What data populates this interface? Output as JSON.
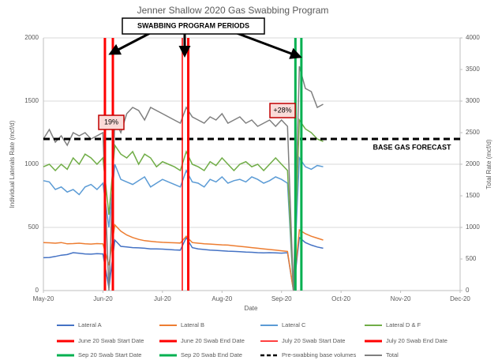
{
  "chart_data": {
    "type": "line",
    "title": "Jenner Shallow 2020 Gas Swabbing Program",
    "x_label": "Date",
    "y_label": "Individual Laterals Rate (mcf/d)",
    "y2_label": "Total Rate (mcf/d)",
    "x": [
      0,
      3,
      6,
      9,
      12,
      15,
      18,
      21,
      24,
      27,
      30,
      33,
      36,
      39,
      42,
      45,
      48,
      51,
      54,
      57,
      60,
      63,
      66,
      69,
      72,
      75,
      78,
      81,
      84,
      87,
      90,
      93,
      96,
      99,
      102,
      105,
      108,
      111,
      114,
      117,
      120,
      123,
      126,
      129,
      132,
      135,
      138,
      141
    ],
    "xlim": [
      0,
      210
    ],
    "xticks": [
      {
        "value": 0,
        "label": "May-20"
      },
      {
        "value": 30,
        "label": "Jun-20"
      },
      {
        "value": 60,
        "label": "Jul-20"
      },
      {
        "value": 90,
        "label": "Aug-20"
      },
      {
        "value": 120,
        "label": "Sep-20"
      },
      {
        "value": 150,
        "label": "Oct-20"
      },
      {
        "value": 180,
        "label": "Nov-20"
      },
      {
        "value": 210,
        "label": "Dec-20"
      }
    ],
    "ylim": [
      0,
      2000
    ],
    "yticks": [
      0,
      500,
      1000,
      1500,
      2000
    ],
    "y2lim": [
      0,
      4000
    ],
    "y2ticks": [
      0,
      500,
      1000,
      1500,
      2000,
      2500,
      3000,
      3500,
      4000
    ],
    "grid": true,
    "series": [
      {
        "name": "Lateral A",
        "color": "#4472c4",
        "values": [
          260,
          262,
          270,
          280,
          285,
          300,
          295,
          290,
          288,
          292,
          290,
          20,
          400,
          350,
          345,
          340,
          338,
          335,
          330,
          330,
          328,
          325,
          322,
          320,
          420,
          340,
          330,
          325,
          320,
          318,
          315,
          312,
          310,
          308,
          305,
          303,
          300,
          298,
          300,
          298,
          296,
          300,
          0,
          420,
          380,
          360,
          345,
          335
        ]
      },
      {
        "name": "Lateral B",
        "color": "#ed7d31",
        "values": [
          380,
          378,
          375,
          380,
          370,
          372,
          375,
          370,
          368,
          372,
          370,
          200,
          520,
          470,
          440,
          420,
          405,
          395,
          390,
          385,
          382,
          380,
          378,
          376,
          430,
          380,
          375,
          370,
          368,
          365,
          362,
          360,
          355,
          350,
          345,
          340,
          335,
          330,
          325,
          320,
          315,
          310,
          0,
          480,
          450,
          430,
          415,
          400
        ]
      },
      {
        "name": "Lateral C",
        "color": "#5b9bd5",
        "values": [
          870,
          860,
          800,
          820,
          780,
          800,
          760,
          820,
          840,
          800,
          850,
          500,
          1000,
          880,
          860,
          840,
          870,
          900,
          820,
          850,
          880,
          860,
          840,
          820,
          950,
          860,
          850,
          820,
          880,
          860,
          900,
          850,
          870,
          880,
          860,
          900,
          880,
          850,
          870,
          900,
          880,
          850,
          0,
          1050,
          980,
          960,
          990,
          980
        ]
      },
      {
        "name": "Lateral D & F",
        "color": "#70ad47",
        "values": [
          980,
          1000,
          950,
          1000,
          960,
          1050,
          1000,
          1080,
          1050,
          1000,
          1050,
          600,
          1150,
          1080,
          1050,
          1100,
          1000,
          1080,
          1050,
          980,
          1020,
          1000,
          980,
          950,
          1100,
          1000,
          980,
          950,
          1020,
          990,
          1050,
          1000,
          950,
          1000,
          1020,
          980,
          1000,
          950,
          1000,
          1050,
          1000,
          950,
          0,
          1350,
          1280,
          1250,
          1200,
          1180
        ]
      },
      {
        "name": "Total",
        "color": "#7f7f7f",
        "axis": "y2",
        "values": [
          2400,
          2550,
          2350,
          2450,
          2300,
          2500,
          2450,
          2500,
          2400,
          2450,
          2500,
          0,
          2700,
          2500,
          2800,
          2900,
          2850,
          2700,
          2900,
          2850,
          2800,
          2750,
          2700,
          2650,
          2900,
          2750,
          2700,
          2650,
          2750,
          2700,
          2800,
          2650,
          2700,
          2750,
          2650,
          2700,
          2600,
          2650,
          2700,
          2600,
          2700,
          2600,
          0,
          3550,
          3200,
          3150,
          2900,
          2950
        ]
      }
    ],
    "vlines": [
      {
        "name": "June 20 Swab  Start Date",
        "color": "#ff0000",
        "x": 31,
        "line_width": 3
      },
      {
        "name": "June 20 Swab End Date",
        "color": "#ff0000",
        "x": 35,
        "line_width": 3
      },
      {
        "name": "July 20 Swab  Start Date",
        "color": "#ff0000",
        "x": 70,
        "line_width": 1.5
      },
      {
        "name": "July 20 Swab End Date",
        "color": "#ff0000",
        "x": 73,
        "line_width": 3
      },
      {
        "name": "Sep 20 Swab  Start Date",
        "color": "#00b050",
        "x": 127,
        "line_width": 3
      },
      {
        "name": "Sep 20 Swab End Date",
        "color": "#00b050",
        "x": 130,
        "line_width": 3
      }
    ],
    "reference_line": {
      "name": "Pre-swabbing base volumes",
      "color": "#000000",
      "value": 1200
    },
    "annotations": [
      "SWABBING PROGRAM PERIODS",
      "19%",
      "+28%",
      "BASE GAS FORECAST"
    ]
  }
}
